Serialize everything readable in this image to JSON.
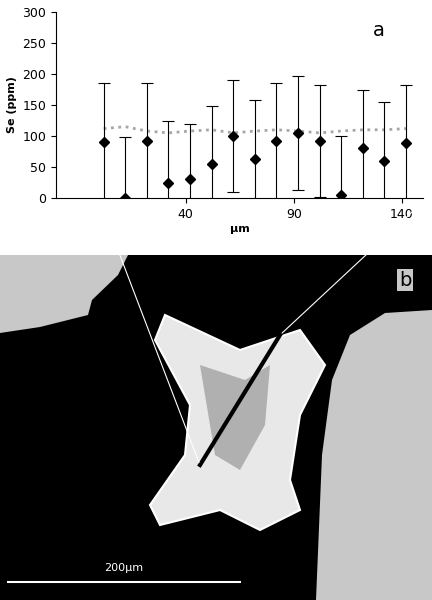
{
  "chart_data": {
    "type": "scatter",
    "panel_label": "a",
    "y_label": "Se (ppm)",
    "x_label": "µm",
    "x": [
      2,
      12,
      22,
      32,
      42,
      52,
      62,
      72,
      82,
      92,
      102,
      112,
      122,
      132,
      142
    ],
    "series": [
      {
        "type": "scatter",
        "marker": "diamond",
        "color": "#000000",
        "values": [
          90,
          0,
          92,
          25,
          30,
          55,
          100,
          63,
          92,
          105,
          92,
          5,
          80,
          60,
          88
        ],
        "error": [
          95,
          98,
          93,
          100,
          90,
          93,
          90,
          95,
          93,
          92,
          90,
          95,
          95,
          95,
          94
        ]
      },
      {
        "type": "line",
        "line_style": "dotted",
        "color": "#a6a6a6",
        "values": [
          112,
          115,
          108,
          105,
          108,
          110,
          105,
          108,
          110,
          108,
          105,
          108,
          110,
          110,
          112
        ]
      }
    ],
    "xlim": [
      -20,
      150
    ],
    "xticks": [
      40,
      90,
      140
    ],
    "ylim": [
      0,
      300
    ],
    "yticks": [
      0,
      50,
      100,
      150,
      200,
      250,
      300
    ]
  },
  "image": {
    "panel_label": "b",
    "scale_bar_label": "200µm"
  }
}
